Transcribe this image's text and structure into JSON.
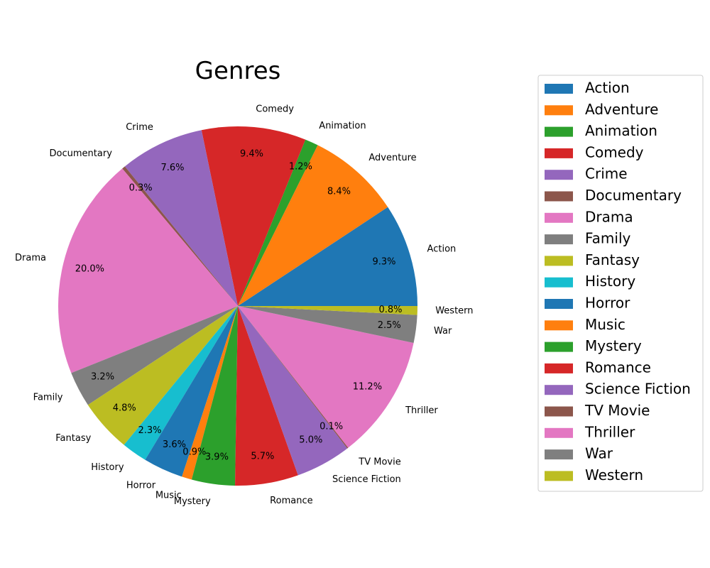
{
  "chart_data": {
    "type": "pie",
    "title": "Genres",
    "start_angle_deg": 0,
    "direction": "counterclockwise",
    "legend_placement": "right",
    "slices": [
      {
        "label": "Action",
        "value": 9.3,
        "pct_label": "9.3%",
        "color": "#1f77b4"
      },
      {
        "label": "Adventure",
        "value": 8.4,
        "pct_label": "8.4%",
        "color": "#ff7f0e"
      },
      {
        "label": "Animation",
        "value": 1.2,
        "pct_label": "1.2%",
        "color": "#2ca02c"
      },
      {
        "label": "Comedy",
        "value": 9.4,
        "pct_label": "9.4%",
        "color": "#d62728"
      },
      {
        "label": "Crime",
        "value": 7.6,
        "pct_label": "7.6%",
        "color": "#9467bd"
      },
      {
        "label": "Documentary",
        "value": 0.3,
        "pct_label": "0.3%",
        "color": "#8c564b"
      },
      {
        "label": "Drama",
        "value": 20.0,
        "pct_label": "20.0%",
        "color": "#e377c2"
      },
      {
        "label": "Family",
        "value": 3.2,
        "pct_label": "3.2%",
        "color": "#7f7f7f"
      },
      {
        "label": "Fantasy",
        "value": 4.8,
        "pct_label": "4.8%",
        "color": "#bcbd22"
      },
      {
        "label": "History",
        "value": 2.3,
        "pct_label": "2.3%",
        "color": "#17becf"
      },
      {
        "label": "Horror",
        "value": 3.6,
        "pct_label": "3.6%",
        "color": "#1f77b4"
      },
      {
        "label": "Music",
        "value": 0.9,
        "pct_label": "0.9%",
        "color": "#ff7f0e"
      },
      {
        "label": "Mystery",
        "value": 3.9,
        "pct_label": "3.9%",
        "color": "#2ca02c"
      },
      {
        "label": "Romance",
        "value": 5.7,
        "pct_label": "5.7%",
        "color": "#d62728"
      },
      {
        "label": "Science Fiction",
        "value": 5.0,
        "pct_label": "5.0%",
        "color": "#9467bd"
      },
      {
        "label": "TV Movie",
        "value": 0.1,
        "pct_label": "0.1%",
        "color": "#8c564b"
      },
      {
        "label": "Thriller",
        "value": 11.2,
        "pct_label": "11.2%",
        "color": "#e377c2"
      },
      {
        "label": "War",
        "value": 2.5,
        "pct_label": "2.5%",
        "color": "#7f7f7f"
      },
      {
        "label": "Western",
        "value": 0.8,
        "pct_label": "0.8%",
        "color": "#bcbd22"
      }
    ]
  }
}
